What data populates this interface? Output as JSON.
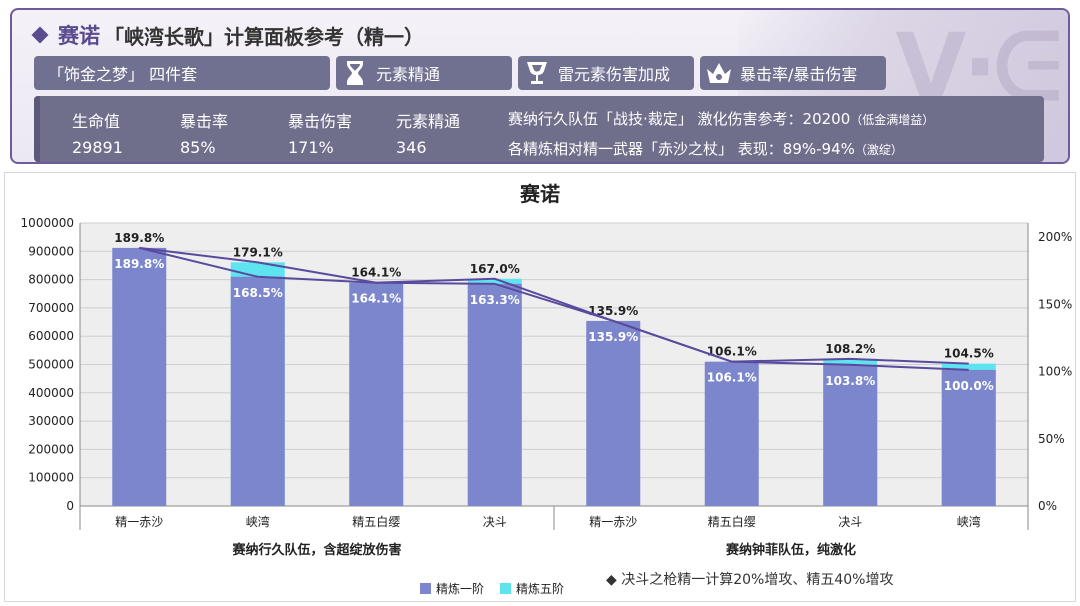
{
  "header": {
    "character": "赛诺",
    "title_rest": "「峡湾长歌」计算面板参考（精一）",
    "tags": [
      {
        "label": "「饰金之梦」 四件套",
        "icon": "none"
      },
      {
        "label": "元素精通",
        "icon": "hourglass-icon"
      },
      {
        "label": "雷元素伤害加成",
        "icon": "goblet-icon"
      },
      {
        "label": "暴击率/暴击伤害",
        "icon": "circlet-icon"
      }
    ],
    "stats": [
      {
        "label": "生命值",
        "value": "29891"
      },
      {
        "label": "暴击率",
        "value": "85%"
      },
      {
        "label": "暴击伤害",
        "value": "171%"
      },
      {
        "label": "元素精通",
        "value": "346"
      }
    ],
    "note1_main": "赛纳行久队伍「战技·裁定」 激化伤害参考：20200",
    "note1_small": "（低金满增益）",
    "note2_main": "各精炼相对精一武器「赤沙之杖」 表现：89%-94%",
    "note2_small": "（激绽）"
  },
  "chart_data": {
    "type": "bar",
    "title": "赛诺",
    "categories": [
      "精一赤沙",
      "峡湾",
      "精五白缨",
      "决斗",
      "精一赤沙",
      "精五白缨",
      "决斗",
      "峡湾"
    ],
    "groups": [
      {
        "label": "赛纳行久队伍，含超绽放伤害",
        "count": 4
      },
      {
        "label": "赛纳钟菲队伍，纯激化",
        "count": 4
      }
    ],
    "series": [
      {
        "name": "精炼一阶",
        "color": "#7b86cc",
        "values": [
          912000,
          810000,
          789000,
          785000,
          654000,
          510000,
          499000,
          481000
        ],
        "pct_labels": [
          "189.8%",
          "168.5%",
          "164.1%",
          "163.3%",
          "135.9%",
          "106.1%",
          "103.8%",
          "100.0%"
        ]
      },
      {
        "name": "精炼五阶",
        "color": "#5ee3f0",
        "values": [
          912000,
          861000,
          789000,
          803000,
          654000,
          510000,
          520000,
          503000
        ],
        "pct_labels": [
          "189.8%",
          "179.1%",
          "164.1%",
          "167.0%",
          "135.9%",
          "106.1%",
          "108.2%",
          "104.5%"
        ]
      }
    ],
    "y_left": {
      "min": 0,
      "max": 1000000,
      "ticks": [
        0,
        100000,
        200000,
        300000,
        400000,
        500000,
        600000,
        700000,
        800000,
        900000,
        1000000
      ]
    },
    "y_right": {
      "ticks": [
        "0%",
        "50%",
        "100%",
        "150%",
        "200%"
      ]
    },
    "line_color": "#5a4a9e",
    "footnote": "◆ 决斗之枪精一计算20%增攻、精五40%增攻"
  }
}
